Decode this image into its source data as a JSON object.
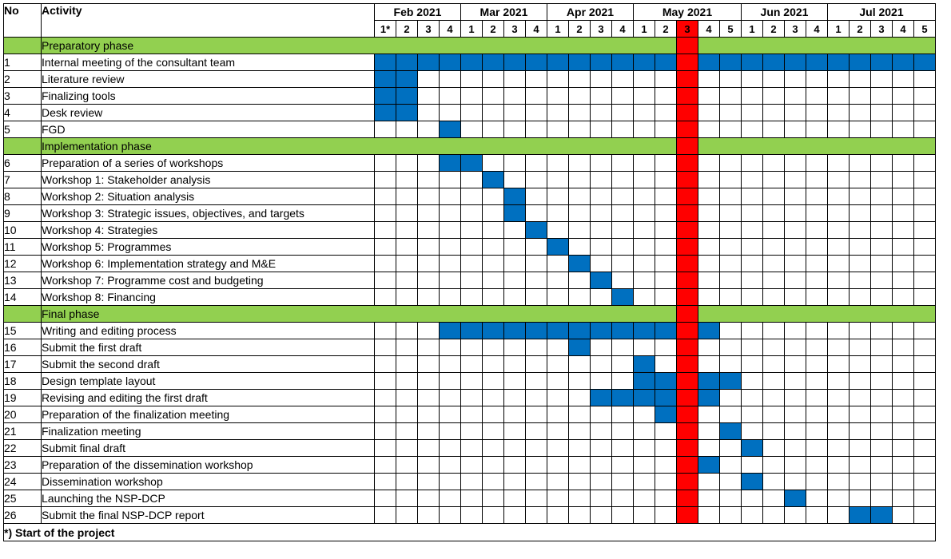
{
  "header": {
    "no": "No",
    "activity": "Activity"
  },
  "months": [
    {
      "label": "Feb 2021",
      "weeks": [
        "1*",
        "2",
        "3",
        "4"
      ]
    },
    {
      "label": "Mar 2021",
      "weeks": [
        "1",
        "2",
        "3",
        "4"
      ]
    },
    {
      "label": "Apr 2021",
      "weeks": [
        "1",
        "2",
        "3",
        "4"
      ]
    },
    {
      "label": "May 2021",
      "weeks": [
        "1",
        "2",
        "3",
        "4",
        "5"
      ]
    },
    {
      "label": "Jun 2021",
      "weeks": [
        "1",
        "2",
        "3",
        "4"
      ]
    },
    {
      "label": "Jul 2021",
      "weeks": [
        "1",
        "2",
        "3",
        "4",
        "5"
      ]
    }
  ],
  "current_week_index": 14,
  "colors": {
    "phase": "#92d050",
    "activity_bar": "#0070c0",
    "current_week": "#ff0000"
  },
  "rows": [
    {
      "type": "phase",
      "label": "Preparatory phase"
    },
    {
      "type": "task",
      "no": "1",
      "label": "Internal meeting of the consultant team",
      "weeks": [
        0,
        1,
        2,
        3,
        4,
        5,
        6,
        7,
        8,
        9,
        10,
        11,
        12,
        13,
        15,
        16,
        17,
        18,
        19,
        20,
        21,
        22,
        23,
        24,
        25
      ]
    },
    {
      "type": "task",
      "no": "2",
      "label": "Literature review",
      "weeks": [
        0,
        1
      ]
    },
    {
      "type": "task",
      "no": "3",
      "label": "Finalizing tools",
      "weeks": [
        0,
        1
      ]
    },
    {
      "type": "task",
      "no": "4",
      "label": "Desk review",
      "weeks": [
        0,
        1
      ]
    },
    {
      "type": "task",
      "no": "5",
      "label": "FGD",
      "weeks": [
        3
      ]
    },
    {
      "type": "phase",
      "label": "Implementation phase"
    },
    {
      "type": "task",
      "no": "6",
      "label": "Preparation of a series of workshops",
      "weeks": [
        3,
        4
      ]
    },
    {
      "type": "task",
      "no": "7",
      "label": "Workshop 1: Stakeholder analysis",
      "weeks": [
        5
      ]
    },
    {
      "type": "task",
      "no": "8",
      "label": "Workshop 2: Situation analysis",
      "weeks": [
        6
      ]
    },
    {
      "type": "task",
      "no": "9",
      "label": "Workshop 3: Strategic issues, objectives, and targets",
      "weeks": [
        6
      ]
    },
    {
      "type": "task",
      "no": "10",
      "label": "Workshop 4: Strategies",
      "weeks": [
        7
      ]
    },
    {
      "type": "task",
      "no": "11",
      "label": "Workshop 5: Programmes",
      "weeks": [
        8
      ]
    },
    {
      "type": "task",
      "no": "12",
      "label": "Workshop 6: Implementation strategy and M&E",
      "weeks": [
        9
      ]
    },
    {
      "type": "task",
      "no": "13",
      "label": "Workshop 7: Programme cost and budgeting",
      "weeks": [
        10
      ]
    },
    {
      "type": "task",
      "no": "14",
      "label": "Workshop 8: Financing",
      "weeks": [
        11
      ]
    },
    {
      "type": "phase",
      "label": "Final phase"
    },
    {
      "type": "task",
      "no": "15",
      "label": "Writing and editing process",
      "weeks": [
        3,
        4,
        5,
        6,
        7,
        8,
        9,
        10,
        11,
        12,
        13,
        15
      ]
    },
    {
      "type": "task",
      "no": "16",
      "label": "Submit the first draft",
      "weeks": [
        9
      ]
    },
    {
      "type": "task",
      "no": "17",
      "label": "Submit the second draft",
      "weeks": [
        12
      ]
    },
    {
      "type": "task",
      "no": "18",
      "label": "Design template layout",
      "weeks": [
        12,
        13,
        15,
        16
      ]
    },
    {
      "type": "task",
      "no": "19",
      "label": "Revising and editing the first draft",
      "weeks": [
        10,
        11,
        12,
        13,
        15
      ]
    },
    {
      "type": "task",
      "no": "20",
      "label": "Preparation of the finalization meeting",
      "weeks": [
        13
      ]
    },
    {
      "type": "task",
      "no": "21",
      "label": "Finalization meeting",
      "weeks": [
        16
      ]
    },
    {
      "type": "task",
      "no": "22",
      "label": "Submit final draft",
      "weeks": [
        17
      ]
    },
    {
      "type": "task",
      "no": "23",
      "label": "Preparation of the dissemination workshop",
      "weeks": [
        15
      ]
    },
    {
      "type": "task",
      "no": "24",
      "label": "Dissemination workshop",
      "weeks": [
        17
      ]
    },
    {
      "type": "task",
      "no": "25",
      "label": "Launching the NSP-DCP",
      "weeks": [
        19
      ]
    },
    {
      "type": "task",
      "no": "26",
      "label": "Submit the final NSP-DCP report",
      "weeks": [
        22,
        23
      ]
    }
  ],
  "footnote": "*) Start of the project"
}
